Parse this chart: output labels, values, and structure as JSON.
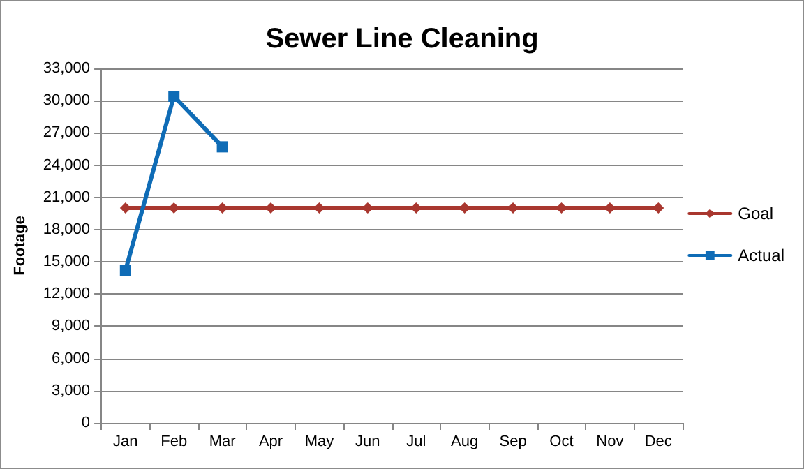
{
  "chart_data": {
    "type": "line",
    "title": "Sewer Line Cleaning",
    "ylabel": "Footage",
    "categories": [
      "Jan",
      "Feb",
      "Mar",
      "Apr",
      "May",
      "Jun",
      "Jul",
      "Aug",
      "Sep",
      "Oct",
      "Nov",
      "Dec"
    ],
    "series": [
      {
        "name": "Goal",
        "color": "#a9372f",
        "marker": "diamond",
        "values": [
          20000,
          20000,
          20000,
          20000,
          20000,
          20000,
          20000,
          20000,
          20000,
          20000,
          20000,
          20000
        ]
      },
      {
        "name": "Actual",
        "color": "#0f6cb6",
        "marker": "square",
        "values": [
          14200,
          30400,
          25700,
          null,
          null,
          null,
          null,
          null,
          null,
          null,
          null,
          null
        ]
      }
    ],
    "ylim": [
      0,
      33000
    ],
    "yticks": [
      0,
      {
        "value": 3000,
        "label": "3,000"
      },
      {
        "value": 6000,
        "label": "6,000"
      },
      {
        "value": 9000,
        "label": "9,000"
      },
      {
        "value": 12000,
        "label": "12,000"
      },
      {
        "value": 15000,
        "label": "15,000"
      },
      {
        "value": 18000,
        "label": "18,000"
      },
      {
        "value": 21000,
        "label": "21,000"
      },
      {
        "value": 24000,
        "label": "24,000"
      },
      {
        "value": 27000,
        "label": "27,000"
      },
      {
        "value": 30000,
        "label": "30,000"
      },
      {
        "value": 33000,
        "label": "33,000"
      }
    ],
    "grid": "y",
    "legend": "right",
    "line_style": "solid"
  }
}
